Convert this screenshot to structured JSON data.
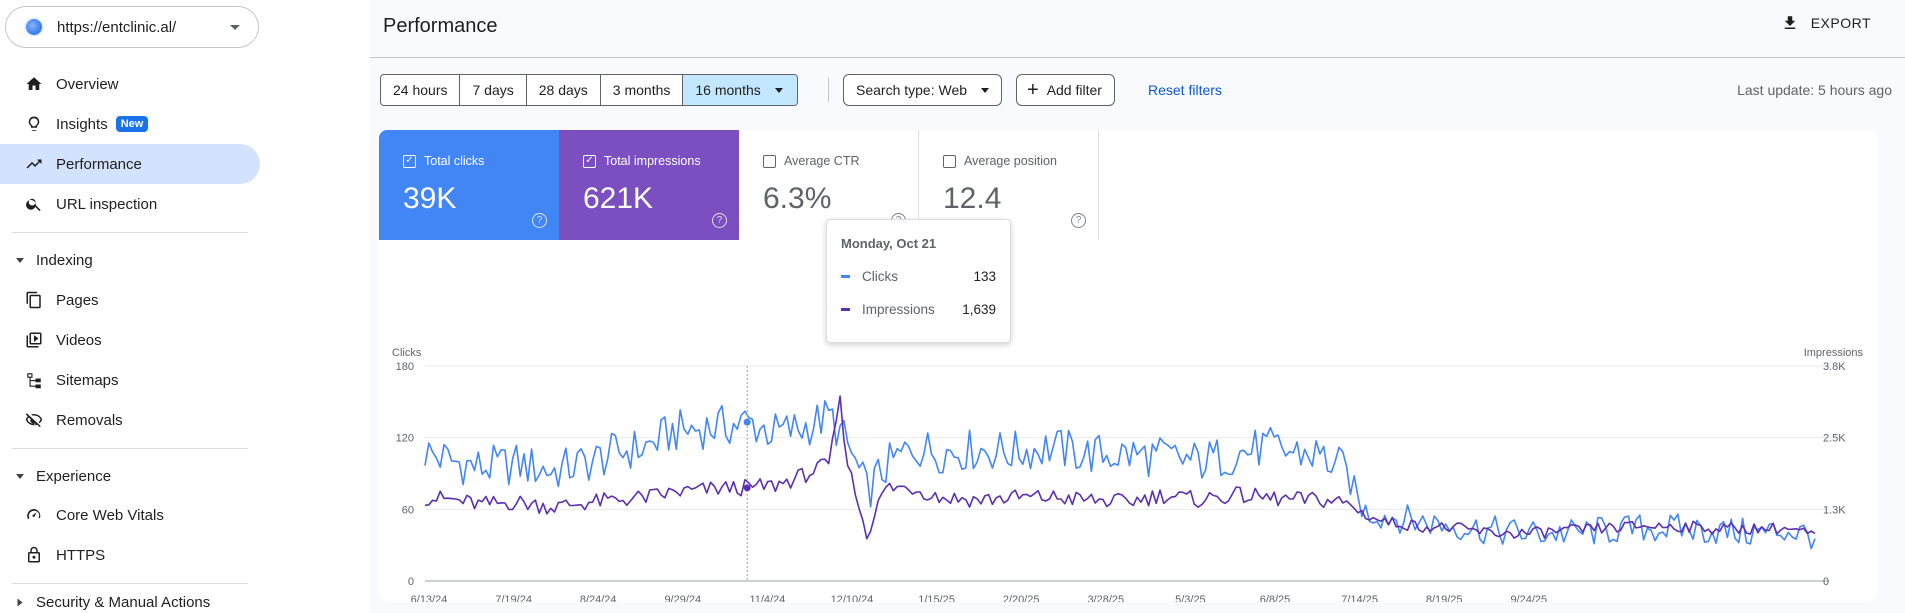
{
  "sidebar": {
    "property_url": "https://entclinic.al/",
    "items": [
      {
        "label": "Overview",
        "icon": "home-icon"
      },
      {
        "label": "Insights",
        "icon": "lightbulb-icon",
        "badge": "New"
      },
      {
        "label": "Performance",
        "icon": "trending-up-icon",
        "active": true
      },
      {
        "label": "URL inspection",
        "icon": "search-icon"
      }
    ],
    "sections": [
      {
        "title": "Indexing",
        "items": [
          {
            "label": "Pages",
            "icon": "pages-icon"
          },
          {
            "label": "Videos",
            "icon": "video-icon"
          },
          {
            "label": "Sitemaps",
            "icon": "sitemap-icon"
          },
          {
            "label": "Removals",
            "icon": "eye-off-icon"
          }
        ]
      },
      {
        "title": "Experience",
        "items": [
          {
            "label": "Core Web Vitals",
            "icon": "gauge-icon"
          },
          {
            "label": "HTTPS",
            "icon": "lock-icon"
          }
        ]
      },
      {
        "title": "Security & Manual Actions",
        "items": []
      }
    ]
  },
  "header": {
    "title": "Performance",
    "export_label": "EXPORT"
  },
  "filters": {
    "date_ranges": [
      "24 hours",
      "7 days",
      "28 days",
      "3 months",
      "16 months"
    ],
    "selected_range": "16 months",
    "search_type": "Search type: Web",
    "add_filter": "Add filter",
    "reset": "Reset filters",
    "last_update": "Last update: 5 hours ago"
  },
  "metrics": {
    "clicks": {
      "label": "Total clicks",
      "value": "39K",
      "checked": true,
      "color": "#4285f4"
    },
    "impressions": {
      "label": "Total impressions",
      "value": "621K",
      "checked": true,
      "color": "#7b4fc0"
    },
    "ctr": {
      "label": "Average CTR",
      "value": "6.3%",
      "checked": false
    },
    "position": {
      "label": "Average position",
      "value": "12.4",
      "checked": false
    }
  },
  "tooltip": {
    "date": "Monday, Oct 21",
    "clicks_label": "Clicks",
    "clicks_value": "133",
    "impressions_label": "Impressions",
    "impressions_value": "1,639"
  },
  "chart_data": {
    "type": "line",
    "left_axis": {
      "label": "Clicks",
      "ticks": [
        "0",
        "60",
        "120",
        "180"
      ],
      "max": 180
    },
    "right_axis": {
      "label": "Impressions",
      "ticks": [
        "0",
        "1.3K",
        "2.5K",
        "3.8K"
      ],
      "max": 3800
    },
    "x_tick_labels": [
      "6/13/24",
      "7/19/24",
      "8/24/24",
      "9/29/24",
      "11/4/24",
      "12/10/24",
      "1/15/25",
      "2/20/25",
      "3/28/25",
      "5/3/25",
      "6/8/25",
      "7/14/25",
      "8/19/25",
      "9/24/25"
    ],
    "hover_index": 35,
    "series": [
      {
        "name": "Clicks",
        "axis": "left",
        "color": "#4285f4",
        "anchors": [
          [
            0,
            108
          ],
          [
            3,
            100
          ],
          [
            6,
            95
          ],
          [
            10,
            98
          ],
          [
            14,
            92
          ],
          [
            18,
            100
          ],
          [
            21,
            108
          ],
          [
            24,
            112
          ],
          [
            27,
            125
          ],
          [
            30,
            128
          ],
          [
            33,
            130
          ],
          [
            35,
            133
          ],
          [
            38,
            124
          ],
          [
            41,
            128
          ],
          [
            44,
            138
          ],
          [
            46,
            112
          ],
          [
            48,
            75
          ],
          [
            50,
            95
          ],
          [
            53,
            112
          ],
          [
            56,
            108
          ],
          [
            60,
            110
          ],
          [
            64,
            108
          ],
          [
            68,
            112
          ],
          [
            72,
            106
          ],
          [
            76,
            106
          ],
          [
            80,
            104
          ],
          [
            84,
            100
          ],
          [
            88,
            106
          ],
          [
            91,
            112
          ],
          [
            94,
            108
          ],
          [
            97,
            106
          ],
          [
            100,
            92
          ],
          [
            102,
            58
          ],
          [
            104,
            55
          ],
          [
            108,
            50
          ],
          [
            112,
            46
          ],
          [
            116,
            42
          ],
          [
            120,
            40
          ],
          [
            124,
            40
          ],
          [
            128,
            42
          ],
          [
            132,
            44
          ],
          [
            136,
            44
          ],
          [
            140,
            42
          ],
          [
            144,
            40
          ],
          [
            148,
            42
          ],
          [
            151,
            38
          ]
        ]
      },
      {
        "name": "Impressions",
        "axis": "left",
        "color": "#5b2fb0",
        "anchors": [
          [
            0,
            70
          ],
          [
            3,
            68
          ],
          [
            6,
            64
          ],
          [
            10,
            66
          ],
          [
            14,
            62
          ],
          [
            18,
            66
          ],
          [
            21,
            68
          ],
          [
            24,
            70
          ],
          [
            27,
            74
          ],
          [
            30,
            76
          ],
          [
            33,
            78
          ],
          [
            35,
            78
          ],
          [
            38,
            80
          ],
          [
            41,
            88
          ],
          [
            44,
            98
          ],
          [
            45,
            155
          ],
          [
            46,
            95
          ],
          [
            48,
            40
          ],
          [
            50,
            78
          ],
          [
            53,
            78
          ],
          [
            56,
            70
          ],
          [
            60,
            68
          ],
          [
            64,
            70
          ],
          [
            68,
            70
          ],
          [
            72,
            68
          ],
          [
            76,
            66
          ],
          [
            80,
            72
          ],
          [
            84,
            68
          ],
          [
            88,
            72
          ],
          [
            91,
            70
          ],
          [
            94,
            68
          ],
          [
            97,
            68
          ],
          [
            100,
            66
          ],
          [
            102,
            56
          ],
          [
            104,
            50
          ],
          [
            108,
            46
          ],
          [
            112,
            44
          ],
          [
            116,
            40
          ],
          [
            120,
            40
          ],
          [
            124,
            42
          ],
          [
            128,
            44
          ],
          [
            132,
            46
          ],
          [
            136,
            46
          ],
          [
            140,
            44
          ],
          [
            144,
            44
          ],
          [
            148,
            44
          ],
          [
            151,
            38
          ]
        ]
      }
    ]
  }
}
